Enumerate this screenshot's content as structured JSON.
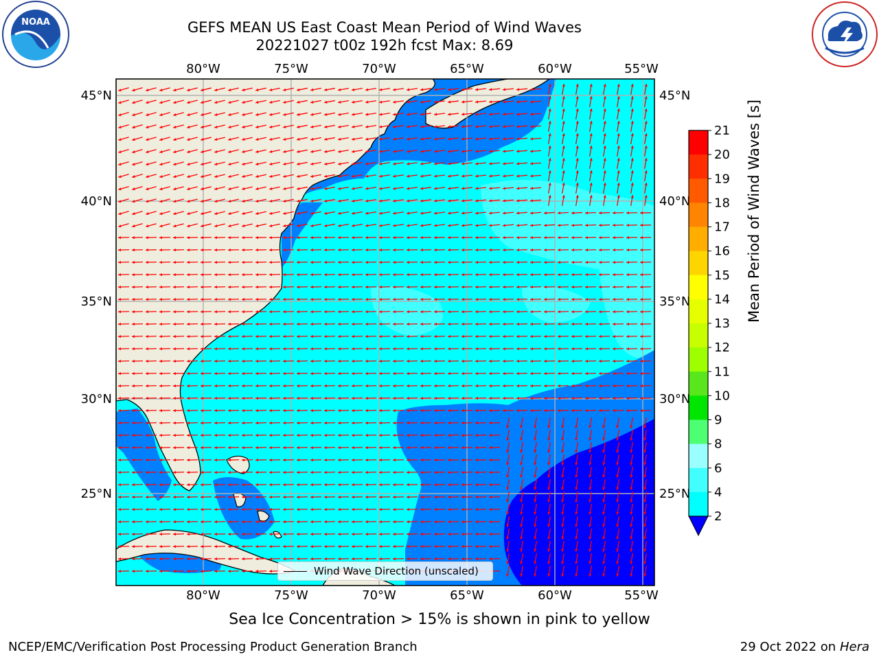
{
  "title": {
    "line1": "GEFS MEAN US East Coast Mean Period of Wind Waves",
    "line2": "20221027 t00z 192h fcst   Max: 8.69"
  },
  "logos": {
    "left": "noaa-logo",
    "left_text": "NOAA",
    "right": "nws-logo"
  },
  "map": {
    "lon_labels": [
      "80°W",
      "75°W",
      "70°W",
      "65°W",
      "60°W",
      "55°W"
    ],
    "lat_labels": [
      "45°N",
      "40°N",
      "35°N",
      "30°N",
      "25°N"
    ],
    "legend_label": "Wind Wave Direction (unscaled)",
    "land_color": "#efedde",
    "ocean_colors": {
      "2_4": "#0080ff",
      "4_6": "#00ffff",
      "6_7": "#41ffff",
      "below_2": "#0000ff"
    },
    "arrow_color": "#ff0000"
  },
  "colorbar": {
    "label": "Mean Period of Wind Waves [s]",
    "ticks": [
      "21",
      "20",
      "19",
      "18",
      "17",
      "16",
      "15",
      "14",
      "13",
      "12",
      "11",
      "10",
      "9",
      "8",
      "6",
      "4",
      "2"
    ],
    "colors": [
      "#ff0000",
      "#ff2e00",
      "#ff5a00",
      "#ff8400",
      "#ffae00",
      "#ffd500",
      "#ffff00",
      "#e6ff00",
      "#c7ff00",
      "#9dff00",
      "#5ae61c",
      "#00e600",
      "#4dff73",
      "#99ffff",
      "#41ffff",
      "#00ffff",
      "#0080ff"
    ],
    "extend_color": "#0000ff"
  },
  "bottom_note": "Sea Ice Concentration > 15% is shown in pink to yellow",
  "footer": {
    "left": "NCEP/EMC/Verification Post Processing Product Generation Branch",
    "right_date": "29 Oct 2022 on ",
    "right_host": "Hera"
  }
}
